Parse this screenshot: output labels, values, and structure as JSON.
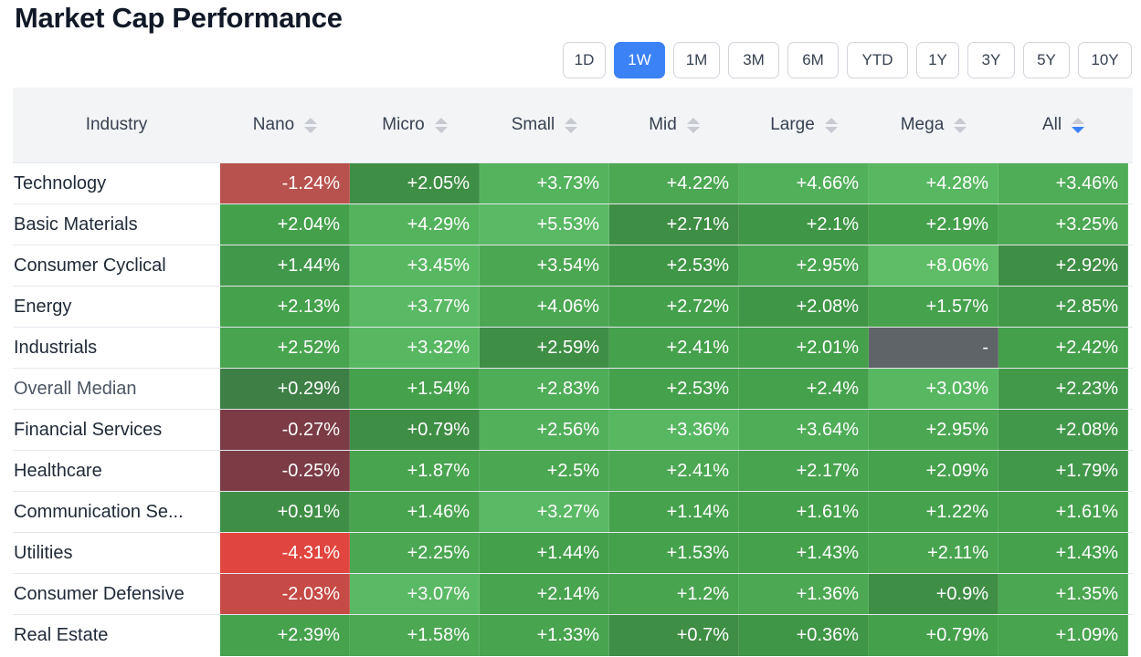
{
  "title": "Market Cap Performance",
  "ranges": [
    "1D",
    "1W",
    "1M",
    "3M",
    "6M",
    "YTD",
    "1Y",
    "3Y",
    "5Y",
    "10Y"
  ],
  "active_range": "1W",
  "table": {
    "industry_header": "Industry",
    "columns": [
      "Nano",
      "Micro",
      "Small",
      "Mid",
      "Large",
      "Mega",
      "All"
    ],
    "sorted_column": "All",
    "rows": [
      {
        "industry": "Technology",
        "values": [
          "-1.24%",
          "+2.05%",
          "+3.73%",
          "+4.22%",
          "+4.66%",
          "+4.28%",
          "+3.46%"
        ],
        "colors": [
          "#b8524e",
          "#3f8e45",
          "#54b45d",
          "#4ca853",
          "#52b05b",
          "#58b861",
          "#4fac57"
        ]
      },
      {
        "industry": "Basic Materials",
        "values": [
          "+2.04%",
          "+4.29%",
          "+5.53%",
          "+2.71%",
          "+2.1%",
          "+2.19%",
          "+3.25%"
        ],
        "colors": [
          "#44a04b",
          "#54b45d",
          "#5ab964",
          "#3f8e45",
          "#3f9646",
          "#44a04b",
          "#4ca853"
        ]
      },
      {
        "industry": "Consumer Cyclical",
        "values": [
          "+1.44%",
          "+3.45%",
          "+3.54%",
          "+2.53%",
          "+2.95%",
          "+8.06%",
          "+2.92%"
        ],
        "colors": [
          "#41984a",
          "#57b861",
          "#4ba752",
          "#3f9646",
          "#48a44f",
          "#5ebd66",
          "#3f8e45"
        ]
      },
      {
        "industry": "Energy",
        "values": [
          "+2.13%",
          "+3.77%",
          "+4.06%",
          "+2.72%",
          "+2.08%",
          "+1.57%",
          "+2.85%"
        ],
        "colors": [
          "#45a14c",
          "#5ab964",
          "#4ba752",
          "#44a04b",
          "#3f9646",
          "#46a24d",
          "#42994a"
        ]
      },
      {
        "industry": "Industrials",
        "values": [
          "+2.52%",
          "+3.32%",
          "+2.59%",
          "+2.41%",
          "+2.01%",
          "-",
          "+2.42%"
        ],
        "colors": [
          "#48a44f",
          "#58b862",
          "#3f8e45",
          "#45a14c",
          "#44a04b",
          "#5f6468",
          "#44a04b"
        ]
      },
      {
        "industry": "Overall Median",
        "values": [
          "+0.29%",
          "+1.54%",
          "+2.83%",
          "+2.53%",
          "+2.4%",
          "+3.03%",
          "+2.23%"
        ],
        "colors": [
          "#3e7f45",
          "#45a14c",
          "#4fac57",
          "#45a14c",
          "#45a14c",
          "#58b862",
          "#42994a"
        ]
      },
      {
        "industry": "Financial Services",
        "values": [
          "-0.27%",
          "+0.79%",
          "+2.56%",
          "+3.36%",
          "+3.64%",
          "+2.95%",
          "+2.08%"
        ],
        "colors": [
          "#7b3c45",
          "#3f8e45",
          "#52b05b",
          "#58b862",
          "#4fac57",
          "#4ba752",
          "#41984a"
        ]
      },
      {
        "industry": "Healthcare",
        "values": [
          "-0.25%",
          "+1.87%",
          "+2.5%",
          "+2.41%",
          "+2.17%",
          "+2.09%",
          "+1.79%"
        ],
        "colors": [
          "#7b3c45",
          "#48a44f",
          "#4ba752",
          "#4ca853",
          "#48a44f",
          "#46a24d",
          "#41984a"
        ]
      },
      {
        "industry": "Communication Se...",
        "values": [
          "+0.91%",
          "+1.46%",
          "+3.27%",
          "+1.14%",
          "+1.61%",
          "+1.22%",
          "+1.61%"
        ],
        "colors": [
          "#3f8e45",
          "#48a44f",
          "#5ab964",
          "#46a24d",
          "#45a14c",
          "#46a24d",
          "#46a24d"
        ]
      },
      {
        "industry": "Utilities",
        "values": [
          "-4.31%",
          "+2.25%",
          "+1.44%",
          "+1.53%",
          "+1.43%",
          "+2.11%",
          "+1.43%"
        ],
        "colors": [
          "#e0463f",
          "#4ba752",
          "#44a04b",
          "#45a14c",
          "#45a14c",
          "#48a44f",
          "#45a14c"
        ]
      },
      {
        "industry": "Consumer Defensive",
        "values": [
          "-2.03%",
          "+3.07%",
          "+2.14%",
          "+1.2%",
          "+1.36%",
          "+0.9%",
          "+1.35%"
        ],
        "colors": [
          "#c64a45",
          "#5ab964",
          "#48a44f",
          "#48a44f",
          "#4ca853",
          "#3f8e45",
          "#4ba752"
        ]
      },
      {
        "industry": "Real Estate",
        "values": [
          "+2.39%",
          "+1.58%",
          "+1.33%",
          "+0.7%",
          "+0.36%",
          "+0.79%",
          "+1.09%"
        ],
        "colors": [
          "#46a24d",
          "#4ca853",
          "#48a44f",
          "#3f8e45",
          "#3f9646",
          "#44a04b",
          "#48a44f"
        ]
      }
    ]
  }
}
